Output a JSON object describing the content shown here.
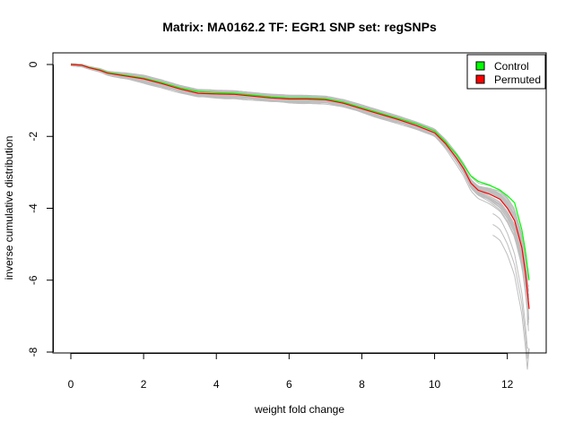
{
  "chart_data": {
    "type": "line",
    "title": "Matrix: MA0162.2 TF: EGR1 SNP set: regSNPs",
    "xlabel": "weight fold change",
    "ylabel": "inverse cumulative distribution",
    "xlim": [
      -0.3,
      12.9
    ],
    "ylim": [
      -8.2,
      0.2
    ],
    "xticks": [
      "0",
      "2",
      "4",
      "6",
      "8",
      "10",
      "12"
    ],
    "yticks": [
      "0",
      "-2",
      "-4",
      "-6",
      "-8"
    ],
    "grid": false,
    "legend_position": "top-right",
    "legend": [
      {
        "label": "Control",
        "color": "#00ff00"
      },
      {
        "label": "Permuted",
        "color": "#ff0000"
      }
    ],
    "permutation_curves_color": "#bebebe",
    "series": [
      {
        "name": "Control",
        "color": "#00ff00",
        "x": [
          0,
          0.3,
          0.5,
          0.8,
          1.0,
          1.5,
          2.0,
          2.5,
          3.0,
          3.5,
          4.0,
          4.5,
          5.0,
          5.5,
          6.0,
          6.5,
          7.0,
          7.5,
          8.0,
          8.5,
          9.0,
          9.5,
          10.0,
          10.3,
          10.6,
          10.8,
          11.0,
          11.2,
          11.5,
          11.8,
          12.0,
          12.2,
          12.4,
          12.5,
          12.6
        ],
        "values": [
          0,
          -0.02,
          -0.08,
          -0.15,
          -0.22,
          -0.3,
          -0.38,
          -0.5,
          -0.65,
          -0.75,
          -0.78,
          -0.8,
          -0.85,
          -0.9,
          -0.93,
          -0.93,
          -0.95,
          -1.05,
          -1.2,
          -1.35,
          -1.5,
          -1.65,
          -1.85,
          -2.15,
          -2.5,
          -2.8,
          -3.1,
          -3.25,
          -3.35,
          -3.5,
          -3.65,
          -3.85,
          -4.6,
          -5.2,
          -6.0
        ]
      },
      {
        "name": "Permuted",
        "color": "#ff0000",
        "x": [
          0,
          0.3,
          0.5,
          0.8,
          1.0,
          1.5,
          2.0,
          2.5,
          3.0,
          3.5,
          4.0,
          4.5,
          5.0,
          5.5,
          6.0,
          6.5,
          7.0,
          7.5,
          8.0,
          8.5,
          9.0,
          9.5,
          10.0,
          10.3,
          10.6,
          10.8,
          11.0,
          11.2,
          11.5,
          11.8,
          12.0,
          12.2,
          12.4,
          12.5,
          12.6
        ],
        "values": [
          0,
          -0.02,
          -0.09,
          -0.16,
          -0.24,
          -0.32,
          -0.4,
          -0.53,
          -0.68,
          -0.8,
          -0.82,
          -0.83,
          -0.88,
          -0.93,
          -0.96,
          -0.96,
          -0.98,
          -1.08,
          -1.23,
          -1.38,
          -1.53,
          -1.7,
          -1.9,
          -2.2,
          -2.6,
          -2.9,
          -3.3,
          -3.5,
          -3.6,
          -3.75,
          -4.0,
          -4.35,
          -5.1,
          -5.8,
          -6.8
        ]
      }
    ]
  }
}
